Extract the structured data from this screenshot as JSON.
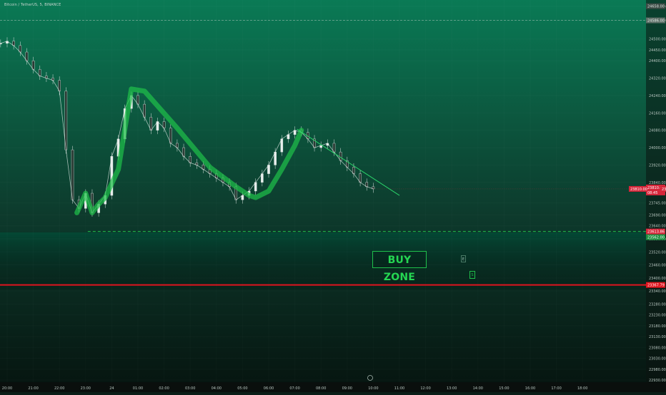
{
  "header": {
    "symbol": "Bitcoin / TetherUS, 5, BINANCE"
  },
  "colors": {
    "accent_green": "#1fbf4a",
    "line_red": "#e0141e",
    "price_label_red": "#d6263a",
    "background_top": "#0a7a55",
    "background_bottom": "#06140f"
  },
  "annotations": {
    "buy_zone": "BUY ZONE",
    "mini_box_1": "E",
    "mini_box_2": "S"
  },
  "chart_data": {
    "type": "line",
    "axis_currency": "USDT",
    "x_tick_labels": [
      "20:00",
      "21:00",
      "22:00",
      "23:00",
      "24",
      "01:00",
      "02:00",
      "03:00",
      "04:00",
      "05:00",
      "06:00",
      "07:00",
      "08:00",
      "09:00",
      "10:00",
      "11:00",
      "12:00",
      "13:00",
      "14:00",
      "15:00",
      "16:00",
      "17:00",
      "18:00"
    ],
    "y_tick_labels": [
      "24650.00",
      "24586.00",
      "24500.00",
      "24450.00",
      "24400.00",
      "24320.00",
      "24240.00",
      "24160.00",
      "24080.00",
      "24000.00",
      "23920.00",
      "23840.00",
      "23745.00",
      "23690.00",
      "23640.00",
      "23580.00",
      "23520.00",
      "23460.00",
      "23400.00",
      "23340.00",
      "23280.00",
      "23230.00",
      "23180.00",
      "23130.00",
      "23080.00",
      "23030.00",
      "22980.00",
      "22930.00"
    ],
    "ylim": [
      22930,
      24660
    ],
    "price_series": {
      "x": [
        "19:45",
        "20:00",
        "20:15",
        "20:30",
        "20:45",
        "21:00",
        "21:15",
        "21:30",
        "21:45",
        "22:00",
        "22:15",
        "22:30",
        "22:45",
        "23:00",
        "23:15",
        "23:30",
        "23:45",
        "00:00",
        "00:15",
        "00:30",
        "00:45",
        "01:00",
        "01:15",
        "01:30",
        "01:45",
        "02:00",
        "02:15",
        "02:30",
        "02:45",
        "03:00",
        "03:15",
        "03:30",
        "03:45",
        "04:00",
        "04:15",
        "04:30",
        "04:45",
        "05:00",
        "05:15",
        "05:30",
        "05:45",
        "06:00",
        "06:15",
        "06:30",
        "06:45",
        "07:00",
        "07:15",
        "07:30",
        "07:45",
        "08:00",
        "08:15",
        "08:30",
        "08:45",
        "09:00",
        "09:15",
        "09:30",
        "09:45",
        "10:00"
      ],
      "values": [
        24480,
        24490,
        24470,
        24440,
        24400,
        24360,
        24330,
        24320,
        24310,
        24260,
        23990,
        23760,
        23720,
        23790,
        23700,
        23740,
        23780,
        23960,
        24040,
        24180,
        24240,
        24200,
        24140,
        24080,
        24120,
        24090,
        24020,
        24000,
        23960,
        23930,
        23920,
        23900,
        23880,
        23860,
        23840,
        23820,
        23760,
        23780,
        23800,
        23840,
        23880,
        23920,
        23980,
        24040,
        24060,
        24080,
        24070,
        24040,
        24000,
        24010,
        24020,
        23980,
        23940,
        23910,
        23880,
        23840,
        23820,
        23810
      ]
    },
    "hand_drawn_path": {
      "x": [
        "22:40",
        "23:00",
        "23:15",
        "23:30",
        "23:45",
        "00:15",
        "00:45",
        "01:15",
        "02:30",
        "03:45",
        "04:45",
        "05:15",
        "05:30",
        "06:00",
        "06:30",
        "07:00",
        "07:15"
      ],
      "values": [
        23700,
        23790,
        23700,
        23740,
        23770,
        23900,
        24270,
        24260,
        24090,
        23910,
        23820,
        23780,
        23770,
        23800,
        23900,
        24010,
        24080
      ]
    },
    "trendline": {
      "x": [
        "07:05",
        "11:00"
      ],
      "values": [
        24085,
        23780
      ]
    },
    "levels": {
      "buy_zone_top": 23613.86,
      "stop_red": 23367.79,
      "upper_dashed": 24586.0,
      "current_price": 23810.0
    },
    "price_labels": {
      "usdt": "USDT",
      "upper_label": "24658.00",
      "upper_dashed_label": "24586.00",
      "current_label": "23810.00",
      "current_subtext": "08:45",
      "left_tag": "23810.00",
      "buy_level_label": "23613.86",
      "buy_level_sub": "23562.00",
      "stop_label": "23367.79",
      "right_tag": "23810"
    }
  }
}
